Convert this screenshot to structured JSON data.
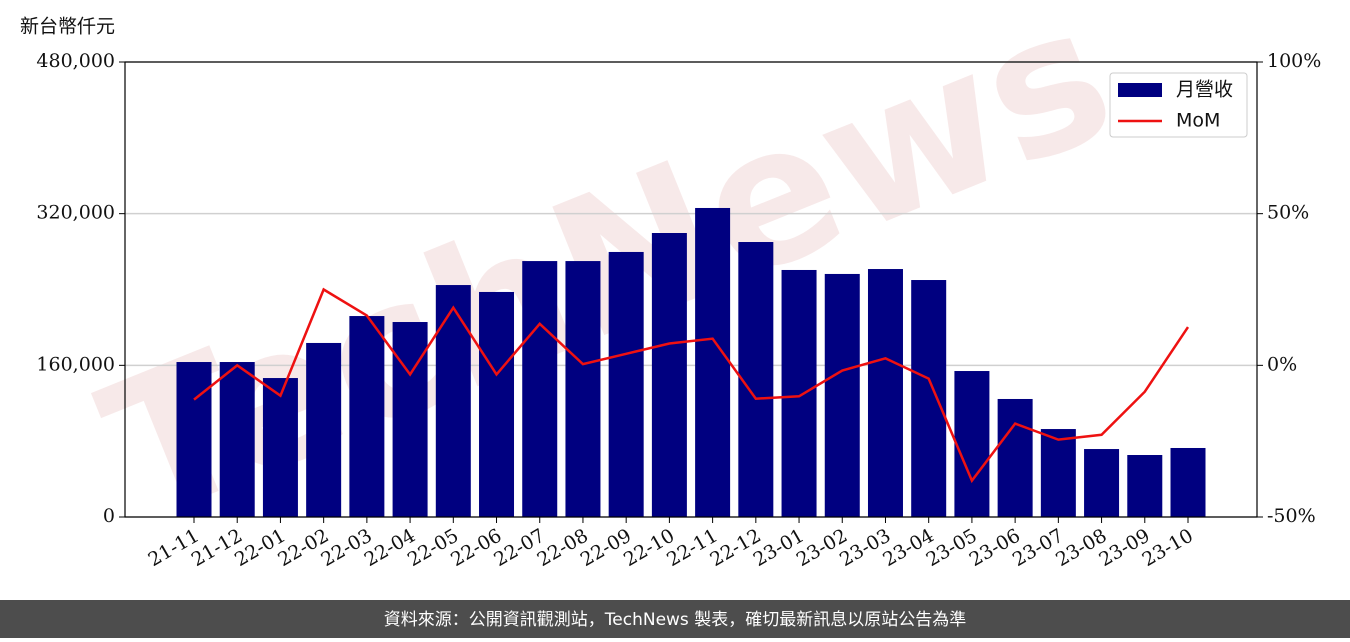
{
  "chart_data": {
    "type": "bar",
    "y_label": "新台幣仟元",
    "watermark": "TechNews",
    "categories": [
      "21-11",
      "21-12",
      "22-01",
      "22-02",
      "22-03",
      "22-04",
      "22-05",
      "22-06",
      "22-07",
      "22-08",
      "22-09",
      "22-10",
      "22-11",
      "22-12",
      "23-01",
      "23-02",
      "23-03",
      "23-04",
      "23-05",
      "23-06",
      "23-07",
      "23-08",
      "23-09",
      "23-10"
    ],
    "series": [
      {
        "name": "月營收",
        "type": "bar",
        "color": "#000080",
        "values": [
          163500,
          163500,
          146600,
          183600,
          212000,
          205700,
          244700,
          237400,
          270000,
          270000,
          279600,
          299600,
          326000,
          290100,
          260600,
          256400,
          261600,
          250000,
          154000,
          124500,
          92800,
          71700,
          65400,
          72800
        ]
      },
      {
        "name": "MoM",
        "type": "line",
        "axis": "y2",
        "color": "#ee1111",
        "values": [
          -11.3,
          0,
          -10,
          25,
          16.4,
          -3,
          19,
          -3,
          13.7,
          0.4,
          3.8,
          7.2,
          8.8,
          -11,
          -10.2,
          -1.7,
          2.3,
          -4.4,
          -38,
          -19.2,
          -24.5,
          -22.9,
          -8.7,
          12.6
        ]
      }
    ],
    "ylim": [
      0,
      480000
    ],
    "yticks": [
      0,
      {
        "value": 160000,
        "label": "160,000"
      },
      {
        "value": 320000,
        "label": "320,000"
      },
      {
        "value": 480000,
        "label": "480,000"
      }
    ],
    "y2lim": [
      -50,
      100
    ],
    "y2ticks": [
      {
        "value": -50,
        "label": "-50%"
      },
      {
        "value": 0,
        "label": "0%"
      },
      {
        "value": 50,
        "label": "50%"
      },
      {
        "value": 100,
        "label": "100%"
      }
    ],
    "grid": true,
    "legend": "upper right"
  },
  "footer": "資料來源：公開資訊觀測站，TechNews 製表，確切最新訊息以原站公告為準"
}
